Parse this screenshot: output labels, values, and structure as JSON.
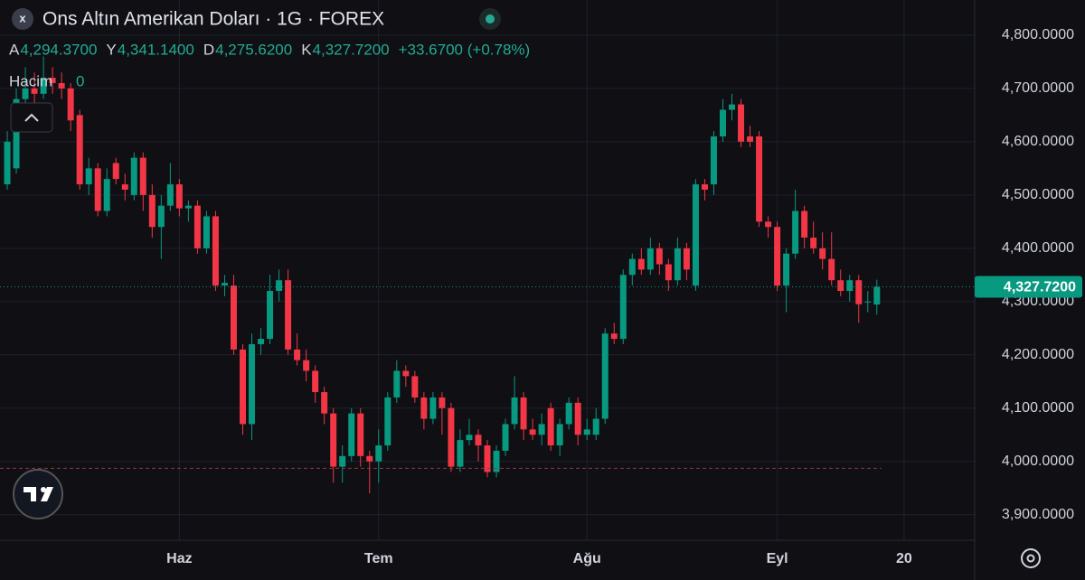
{
  "chart_data": {
    "type": "candlestick",
    "title": "Ons Altın Amerikan Doları · 1G · FOREX",
    "legend": {
      "ohlc": [
        {
          "key": "A",
          "value": "4,294.3700"
        },
        {
          "key": "Y",
          "value": "4,341.1400"
        },
        {
          "key": "D",
          "value": "4,275.6200"
        },
        {
          "key": "K",
          "value": "4,327.7200"
        }
      ],
      "change": "+33.6700 (+0.78%)",
      "volume_label": "Hacim",
      "volume_value": "0"
    },
    "up_color": "#089981",
    "down_color": "#f23645",
    "open": [
      4520,
      4550,
      4680,
      4700,
      4690,
      4720,
      4710,
      4700,
      4650,
      4520,
      4550,
      4470,
      4560,
      4520,
      4500,
      4570,
      4500,
      4440,
      4480,
      4520,
      4475,
      4480,
      4400,
      4460,
      4330,
      4330,
      4210,
      4070,
      4220,
      4230,
      4320,
      4340,
      4210,
      4190,
      4170,
      4130,
      4090,
      3990,
      4010,
      4090,
      4010,
      4000,
      4030,
      4120,
      4170,
      4160,
      4120,
      4080,
      4120,
      4100,
      3990,
      4040,
      4050,
      4030,
      3980,
      4020,
      4070,
      4120,
      4060,
      4050,
      4100,
      4030,
      4070,
      4110,
      4050,
      4050,
      4080,
      4240,
      4230,
      4350,
      4380,
      4360,
      4400,
      4370,
      4340,
      4400,
      4330,
      4520,
      4520,
      4610,
      4660,
      4670,
      4610,
      4610,
      4450,
      4440,
      4330,
      4390,
      4470,
      4420,
      4400,
      4380,
      4340,
      4320,
      4340,
      4300,
      4294.37
    ],
    "high": [
      4620,
      4700,
      4740,
      4730,
      4760,
      4740,
      4730,
      4710,
      4660,
      4570,
      4560,
      4550,
      4570,
      4540,
      4580,
      4580,
      4520,
      4500,
      4560,
      4530,
      4490,
      4490,
      4470,
      4470,
      4350,
      4350,
      4220,
      4240,
      4250,
      4350,
      4360,
      4360,
      4240,
      4210,
      4180,
      4140,
      4100,
      4030,
      4100,
      4100,
      4020,
      4060,
      4130,
      4190,
      4180,
      4170,
      4130,
      4130,
      4130,
      4110,
      4060,
      4080,
      4060,
      4040,
      4030,
      4080,
      4160,
      4130,
      4080,
      4090,
      4110,
      4080,
      4120,
      4120,
      4080,
      4100,
      4250,
      4260,
      4360,
      4390,
      4400,
      4420,
      4410,
      4380,
      4420,
      4410,
      4530,
      4530,
      4620,
      4680,
      4690,
      4680,
      4630,
      4620,
      4460,
      4450,
      4400,
      4510,
      4480,
      4450,
      4430,
      4430,
      4360,
      4350,
      4350,
      4320,
      4341.14
    ],
    "low": [
      4510,
      4540,
      4660,
      4670,
      4680,
      4690,
      4680,
      4620,
      4510,
      4500,
      4460,
      4460,
      4520,
      4490,
      4490,
      4470,
      4420,
      4380,
      4470,
      4460,
      4450,
      4390,
      4390,
      4320,
      4310,
      4200,
      4050,
      4040,
      4200,
      4220,
      4300,
      4200,
      4180,
      4150,
      4110,
      4070,
      3960,
      3960,
      4000,
      3990,
      3940,
      3960,
      4020,
      4110,
      4140,
      4110,
      4060,
      4070,
      4050,
      3980,
      3980,
      4030,
      4000,
      3970,
      3970,
      4010,
      4060,
      4040,
      4040,
      4030,
      4020,
      4010,
      4060,
      4030,
      4040,
      4040,
      4070,
      4220,
      4220,
      4330,
      4350,
      4350,
      4350,
      4320,
      4330,
      4340,
      4320,
      4490,
      4500,
      4600,
      4640,
      4590,
      4590,
      4440,
      4420,
      4320,
      4280,
      4380,
      4400,
      4390,
      4360,
      4330,
      4310,
      4300,
      4260,
      4280,
      4275.62
    ],
    "close": [
      4600,
      4680,
      4700,
      4690,
      4720,
      4710,
      4700,
      4640,
      4520,
      4550,
      4470,
      4530,
      4530,
      4510,
      4570,
      4500,
      4440,
      4480,
      4520,
      4475,
      4480,
      4400,
      4460,
      4330,
      4335,
      4210,
      4070,
      4220,
      4230,
      4320,
      4340,
      4210,
      4190,
      4170,
      4130,
      4090,
      3990,
      4010,
      4090,
      4010,
      4000,
      4030,
      4120,
      4170,
      4160,
      4120,
      4080,
      4120,
      4100,
      3990,
      4040,
      4050,
      4030,
      3980,
      4020,
      4070,
      4120,
      4060,
      4050,
      4070,
      4030,
      4070,
      4110,
      4050,
      4060,
      4080,
      4240,
      4230,
      4350,
      4380,
      4360,
      4400,
      4370,
      4340,
      4400,
      4360,
      4520,
      4510,
      4610,
      4660,
      4670,
      4600,
      4600,
      4450,
      4440,
      4330,
      4390,
      4470,
      4420,
      4400,
      4380,
      4340,
      4320,
      4340,
      4295,
      4300,
      4327.72
    ],
    "last_price": 4327.72,
    "low_line": 3987,
    "xlim": [
      -0.8,
      106.8
    ],
    "xticks": [
      {
        "value": 19,
        "label": "Haz"
      },
      {
        "value": 41,
        "label": "Tem"
      },
      {
        "value": 64,
        "label": "Ağu"
      },
      {
        "value": 85,
        "label": "Eyl"
      },
      {
        "value": 99,
        "label": "20"
      }
    ],
    "ylim": [
      3852,
      4866
    ],
    "yticks": [
      {
        "value": 3900,
        "label": "3,900.0000"
      },
      {
        "value": 4000,
        "label": "4,000.0000"
      },
      {
        "value": 4100,
        "label": "4,100.0000"
      },
      {
        "value": 4200,
        "label": "4,200.0000"
      },
      {
        "value": 4300,
        "label": "4,300.0000"
      },
      {
        "value": 4400,
        "label": "4,400.0000"
      },
      {
        "value": 4500,
        "label": "4,500.0000"
      },
      {
        "value": 4600,
        "label": "4,600.0000"
      },
      {
        "value": 4700,
        "label": "4,700.0000"
      },
      {
        "value": 4800,
        "label": "4,800.0000"
      }
    ],
    "grid": true
  }
}
